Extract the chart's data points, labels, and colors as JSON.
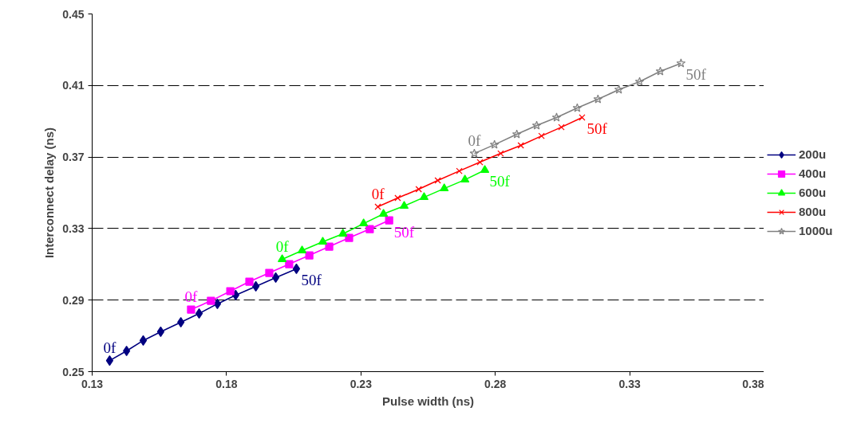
{
  "chart_data": {
    "type": "line",
    "xlabel": "Pulse width (ns)",
    "ylabel": "Interconnect delay (ns)",
    "xlim": [
      0.13,
      0.38
    ],
    "xticks": [
      0.13,
      0.18,
      0.23,
      0.28,
      0.33,
      0.38
    ],
    "ylim": [
      0.25,
      0.45
    ],
    "yticks": [
      0.25,
      0.29,
      0.33,
      0.37,
      0.41,
      0.45
    ],
    "grid": "y",
    "legend": "right",
    "line_style": "solid",
    "series": [
      {
        "name": "200u",
        "color": "#000080",
        "marker": "diamond",
        "x": [
          0.1365,
          0.1428,
          0.149,
          0.1555,
          0.163,
          0.1698,
          0.1766,
          0.1834,
          0.1909,
          0.1983,
          0.206
        ],
        "values": [
          0.2562,
          0.2616,
          0.2674,
          0.2723,
          0.2776,
          0.2825,
          0.2879,
          0.2928,
          0.2977,
          0.3026,
          0.3075
        ]
      },
      {
        "name": "400u",
        "color": "#ff00ff",
        "marker": "square",
        "x": [
          0.1668,
          0.1742,
          0.1814,
          0.1885,
          0.1959,
          0.2033,
          0.2108,
          0.2182,
          0.2256,
          0.2333,
          0.2405
        ],
        "values": [
          0.2847,
          0.2896,
          0.295,
          0.3003,
          0.3052,
          0.3101,
          0.315,
          0.3199,
          0.3248,
          0.3297,
          0.3346
        ]
      },
      {
        "name": "600u",
        "color": "#00ff00",
        "marker": "triangle",
        "x": [
          0.2007,
          0.2081,
          0.2158,
          0.2233,
          0.231,
          0.2384,
          0.2461,
          0.2535,
          0.261,
          0.2687,
          0.2761
        ],
        "values": [
          0.3128,
          0.3177,
          0.3226,
          0.3271,
          0.3328,
          0.3382,
          0.3426,
          0.3475,
          0.3524,
          0.3573,
          0.3627
        ]
      },
      {
        "name": "800u",
        "color": "#ff0000",
        "marker": "cross",
        "x": [
          0.2363,
          0.2437,
          0.2515,
          0.2586,
          0.2666,
          0.2743,
          0.282,
          0.2895,
          0.2972,
          0.3046,
          0.3123
        ],
        "values": [
          0.3422,
          0.3471,
          0.352,
          0.3569,
          0.3622,
          0.3671,
          0.372,
          0.3765,
          0.3818,
          0.3867,
          0.3921
        ]
      },
      {
        "name": "1000u",
        "color": "#808080",
        "marker": "star",
        "x": [
          0.2722,
          0.2797,
          0.288,
          0.2954,
          0.3028,
          0.3105,
          0.3182,
          0.326,
          0.3337,
          0.3414,
          0.3491
        ],
        "values": [
          0.372,
          0.3769,
          0.3827,
          0.3876,
          0.3921,
          0.3974,
          0.4023,
          0.4077,
          0.4121,
          0.4179,
          0.4224
        ]
      }
    ],
    "annotations": [
      {
        "text": "0f",
        "x": 0.1365,
        "y": 0.2562
      },
      {
        "text": "50f",
        "x": 0.206,
        "y": 0.3075
      },
      {
        "text": "0f",
        "x": 0.1668,
        "y": 0.2847
      },
      {
        "text": "50f",
        "x": 0.2405,
        "y": 0.3346
      },
      {
        "text": "0f",
        "x": 0.2007,
        "y": 0.3128
      },
      {
        "text": "50f",
        "x": 0.2761,
        "y": 0.3627
      },
      {
        "text": "0f",
        "x": 0.2363,
        "y": 0.3422
      },
      {
        "text": "50f",
        "x": 0.3123,
        "y": 0.3921
      },
      {
        "text": "0f",
        "x": 0.2722,
        "y": 0.372
      },
      {
        "text": "50f",
        "x": 0.3491,
        "y": 0.4224
      }
    ]
  }
}
